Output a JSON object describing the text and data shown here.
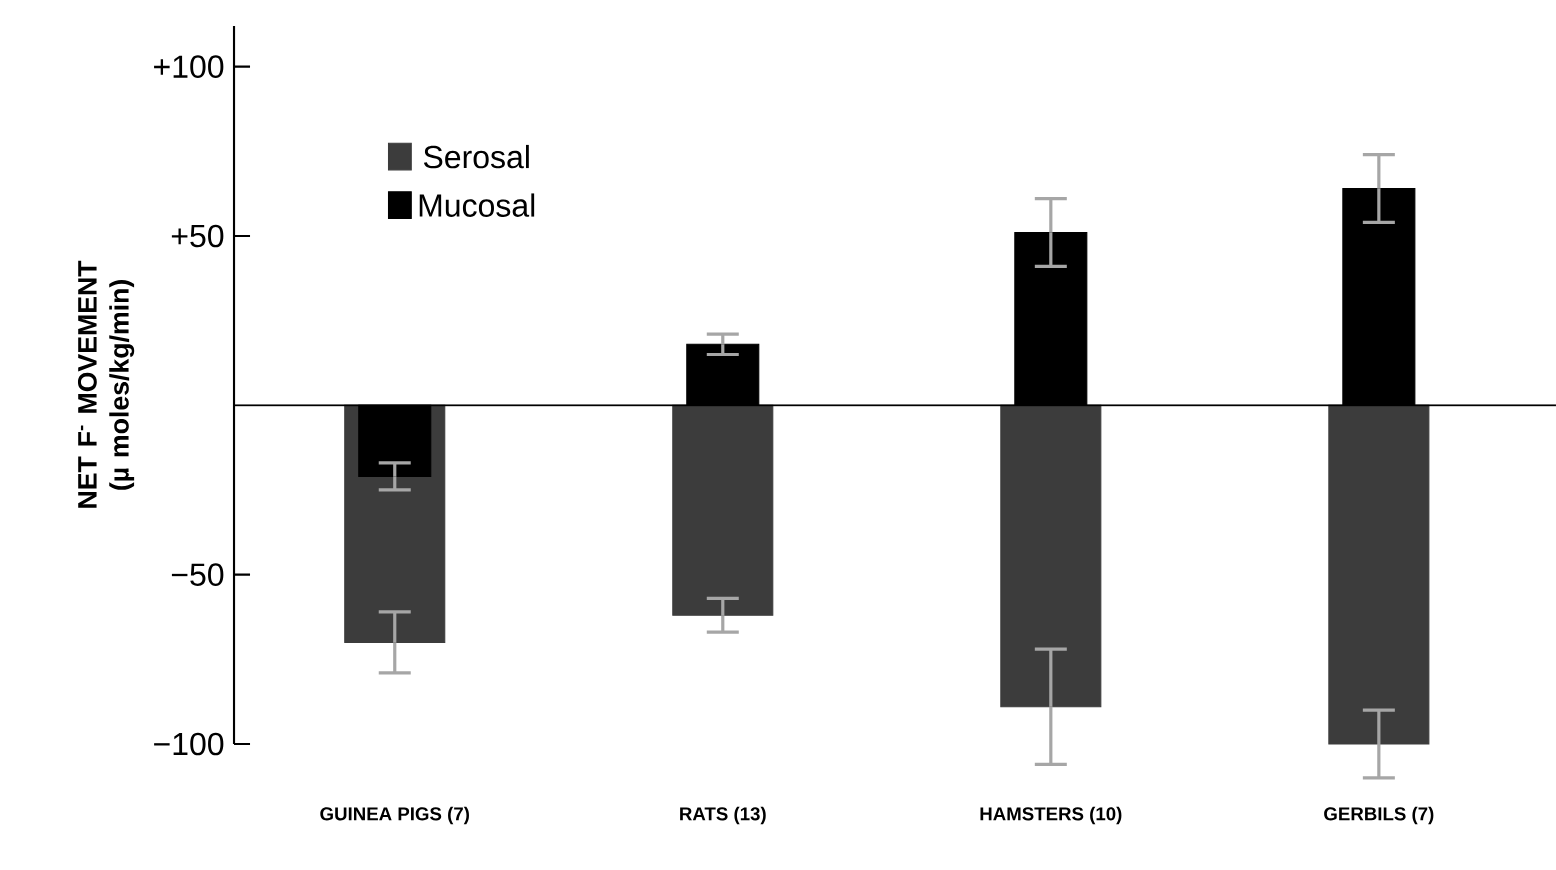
{
  "chart_data": {
    "type": "bar",
    "ylabel": "NET F$^{-}$ MOVEMENT (µ moles/kg/min)",
    "categories": [
      "GUINEA PIGS (7)",
      "RATS (13)",
      "HAMSTERS (10)",
      "GERBILS (7)"
    ],
    "series": [
      {
        "name": "Serosal",
        "color": "#3c3c3c",
        "values": [
          -70,
          -62,
          -89,
          -100
        ],
        "errors": [
          9,
          5,
          17,
          10
        ]
      },
      {
        "name": "Mucosal",
        "color": "#000000",
        "values": [
          -21,
          18,
          51,
          64
        ],
        "errors": [
          4,
          3,
          10,
          10
        ]
      }
    ],
    "ylim": [
      -100,
      112
    ],
    "yticks": [
      {
        "value": 100,
        "label": "+100"
      },
      {
        "value": 50,
        "label": "+50"
      },
      {
        "value": -50,
        "label": "−50"
      },
      {
        "value": -100,
        "label": "−100"
      }
    ],
    "legend": "top left",
    "grid": false
  }
}
